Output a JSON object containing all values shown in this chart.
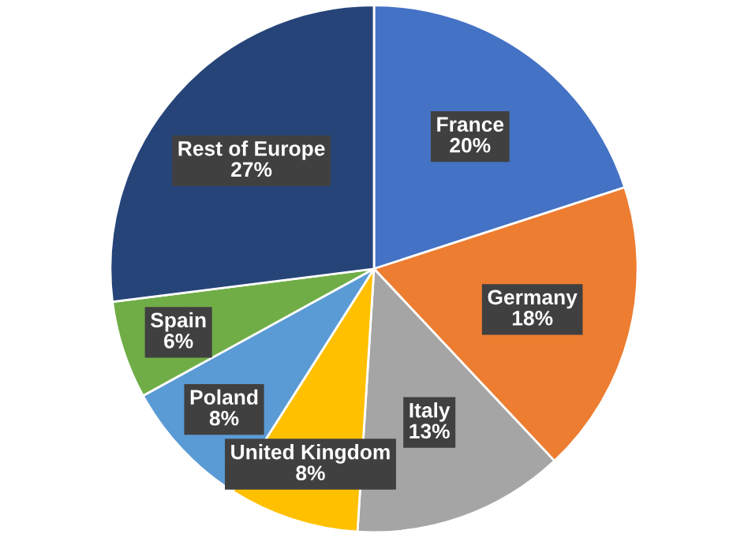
{
  "chart_data": {
    "type": "pie",
    "categories": [
      "France",
      "Germany",
      "Italy",
      "United Kingdom",
      "Poland",
      "Spain",
      "Rest of Europe"
    ],
    "values": [
      20,
      18,
      13,
      8,
      8,
      6,
      27
    ],
    "colors": [
      "#4472c4",
      "#ed7d31",
      "#a5a5a5",
      "#ffc000",
      "#5b9bd5",
      "#70ad47",
      "#264478"
    ],
    "value_labels": [
      "20%",
      "18%",
      "13%",
      "8%",
      "8%",
      "6%",
      "27%"
    ],
    "legend": false
  }
}
